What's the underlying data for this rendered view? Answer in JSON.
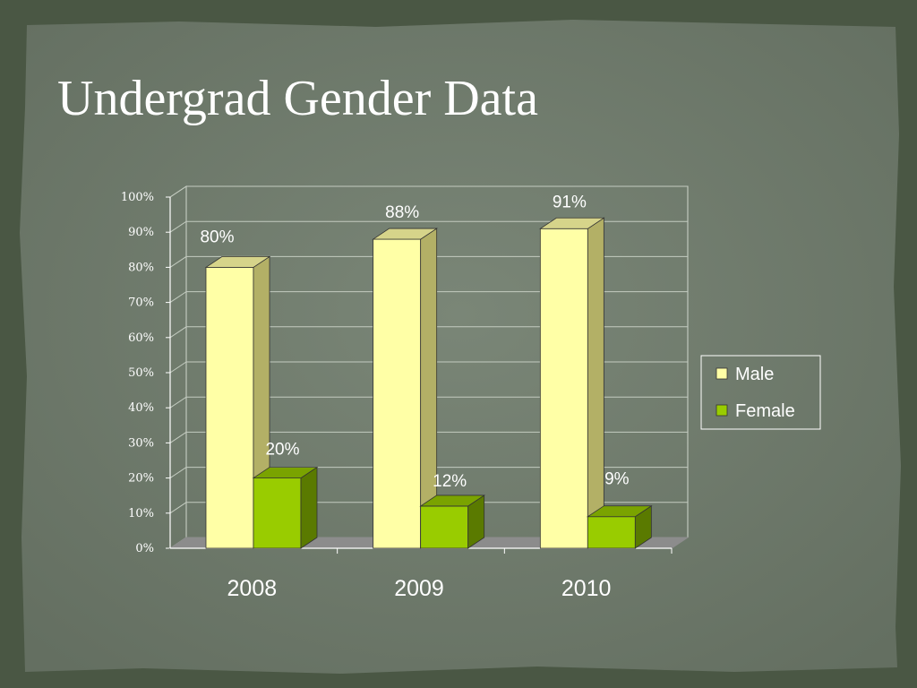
{
  "slide": {
    "title": "Undergrad Gender Data"
  },
  "chart_data": {
    "type": "bar",
    "categories": [
      "2008",
      "2009",
      "2010"
    ],
    "series": [
      {
        "name": "Male",
        "values": [
          80,
          88,
          91
        ],
        "labels": [
          "80%",
          "88%",
          "91%"
        ],
        "color": "#ffffa6",
        "side_color": "#b3b066",
        "top_color": "#d6d48a"
      },
      {
        "name": "Female",
        "values": [
          20,
          12,
          9
        ],
        "labels": [
          "20%",
          "12%",
          "9%"
        ],
        "color": "#99cc00",
        "side_color": "#5a7a00",
        "top_color": "#7aa300"
      }
    ],
    "ylim": [
      0,
      100
    ],
    "yticks": [
      0,
      10,
      20,
      30,
      40,
      50,
      60,
      70,
      80,
      90,
      100
    ],
    "ytick_labels": [
      "0%",
      "10%",
      "20%",
      "30%",
      "40%",
      "50%",
      "60%",
      "70%",
      "80%",
      "90%",
      "100%"
    ],
    "grid": true,
    "legend": "right",
    "title": "",
    "xlabel": "",
    "ylabel": ""
  },
  "colors": {
    "background": "#4a5744",
    "panel": "#6f7c6c",
    "text": "#ffffff"
  }
}
